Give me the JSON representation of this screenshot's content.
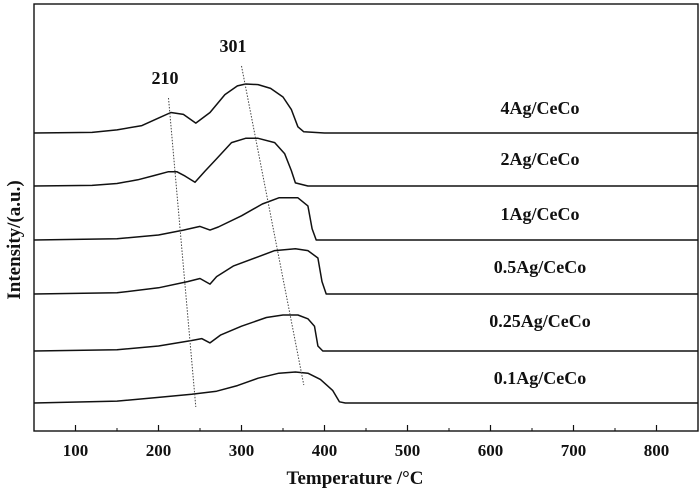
{
  "chart_data": {
    "type": "line",
    "title": "",
    "xlabel": "Temperature /°C",
    "ylabel": "Intensity/(a.u.)",
    "xlim": [
      50,
      850
    ],
    "x_ticks": [
      100,
      200,
      300,
      400,
      500,
      600,
      700,
      800
    ],
    "y_ticks": [],
    "grid": false,
    "legend": "labels-at-right-of-each-curve",
    "line_color": "#111111",
    "series": [
      {
        "name": "4Ag/CeCo",
        "points": [
          [
            50,
            0
          ],
          [
            120,
            1
          ],
          [
            150,
            5
          ],
          [
            180,
            12
          ],
          [
            200,
            24
          ],
          [
            215,
            33
          ],
          [
            230,
            30
          ],
          [
            245,
            16
          ],
          [
            262,
            33
          ],
          [
            280,
            62
          ],
          [
            295,
            76
          ],
          [
            305,
            79
          ],
          [
            320,
            78
          ],
          [
            335,
            72
          ],
          [
            350,
            58
          ],
          [
            360,
            38
          ],
          [
            368,
            10
          ],
          [
            375,
            2
          ],
          [
            400,
            0
          ],
          [
            850,
            0
          ]
        ]
      },
      {
        "name": "2Ag/CeCo",
        "points": [
          [
            50,
            0
          ],
          [
            120,
            1
          ],
          [
            150,
            4
          ],
          [
            175,
            10
          ],
          [
            195,
            17
          ],
          [
            212,
            23
          ],
          [
            222,
            23
          ],
          [
            232,
            16
          ],
          [
            244,
            6
          ],
          [
            256,
            24
          ],
          [
            270,
            44
          ],
          [
            288,
            70
          ],
          [
            305,
            77
          ],
          [
            320,
            77
          ],
          [
            340,
            70
          ],
          [
            352,
            52
          ],
          [
            360,
            25
          ],
          [
            365,
            5
          ],
          [
            380,
            0
          ],
          [
            850,
            0
          ]
        ]
      },
      {
        "name": "1Ag/CeCo",
        "points": [
          [
            50,
            0
          ],
          [
            150,
            2
          ],
          [
            200,
            8
          ],
          [
            230,
            16
          ],
          [
            250,
            22
          ],
          [
            262,
            16
          ],
          [
            272,
            21
          ],
          [
            300,
            39
          ],
          [
            325,
            58
          ],
          [
            345,
            68
          ],
          [
            368,
            68
          ],
          [
            380,
            55
          ],
          [
            385,
            18
          ],
          [
            390,
            0
          ],
          [
            850,
            0
          ]
        ]
      },
      {
        "name": "0.5Ag/CeCo",
        "points": [
          [
            50,
            0
          ],
          [
            150,
            2
          ],
          [
            200,
            10
          ],
          [
            235,
            20
          ],
          [
            250,
            25
          ],
          [
            262,
            16
          ],
          [
            270,
            28
          ],
          [
            290,
            45
          ],
          [
            320,
            60
          ],
          [
            340,
            70
          ],
          [
            365,
            73
          ],
          [
            380,
            70
          ],
          [
            392,
            58
          ],
          [
            397,
            20
          ],
          [
            402,
            0
          ],
          [
            850,
            0
          ]
        ]
      },
      {
        "name": "0.25Ag/CeCo",
        "points": [
          [
            50,
            0
          ],
          [
            150,
            2
          ],
          [
            200,
            8
          ],
          [
            240,
            17
          ],
          [
            252,
            20
          ],
          [
            262,
            13
          ],
          [
            275,
            26
          ],
          [
            300,
            40
          ],
          [
            330,
            54
          ],
          [
            350,
            58
          ],
          [
            368,
            58
          ],
          [
            380,
            52
          ],
          [
            388,
            40
          ],
          [
            392,
            8
          ],
          [
            398,
            0
          ],
          [
            850,
            0
          ]
        ]
      },
      {
        "name": "0.1Ag/CeCo",
        "points": [
          [
            50,
            0
          ],
          [
            150,
            3
          ],
          [
            200,
            9
          ],
          [
            240,
            14
          ],
          [
            270,
            19
          ],
          [
            295,
            28
          ],
          [
            320,
            40
          ],
          [
            345,
            48
          ],
          [
            365,
            50
          ],
          [
            380,
            48
          ],
          [
            395,
            38
          ],
          [
            410,
            20
          ],
          [
            418,
            2
          ],
          [
            425,
            0
          ],
          [
            850,
            0
          ]
        ]
      }
    ],
    "annotations": [
      {
        "text": "210",
        "line_from": [
          212,
          6.25
        ],
        "line_to": [
          245,
          0.68
        ]
      },
      {
        "text": "301",
        "line_from": [
          300,
          6.62
        ],
        "line_to": [
          375,
          0.95
        ]
      }
    ]
  }
}
